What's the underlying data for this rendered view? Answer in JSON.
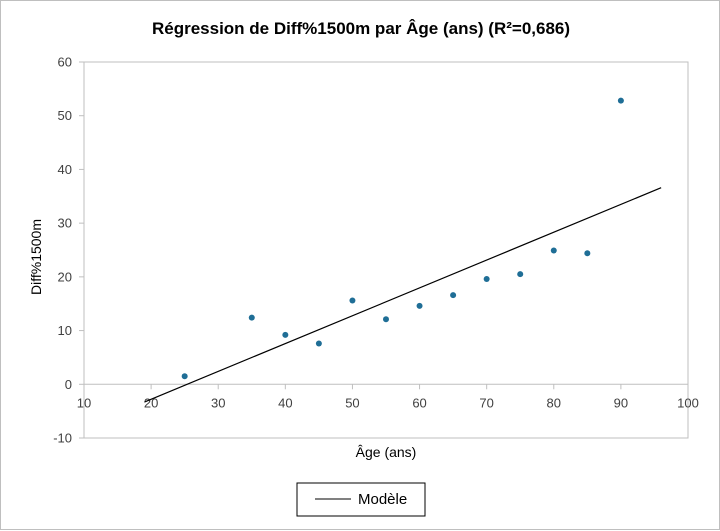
{
  "chart_data": {
    "type": "scatter",
    "title": "Régression de Diff%1500m par Âge (ans) (R²=0,686)",
    "xlabel": "Âge (ans)",
    "ylabel": "Diff%1500m",
    "xlim": [
      10,
      100
    ],
    "ylim": [
      -10,
      60
    ],
    "xticks": [
      10,
      20,
      30,
      40,
      50,
      60,
      70,
      80,
      90,
      100
    ],
    "yticks": [
      -10,
      0,
      10,
      20,
      30,
      40,
      50,
      60
    ],
    "grid": false,
    "legend_position": "bottom",
    "series": [
      {
        "type": "scatter",
        "color": "#1f6e96",
        "x": [
          25,
          35,
          40,
          45,
          50,
          55,
          60,
          65,
          70,
          75,
          80,
          85,
          90
        ],
        "y": [
          1.5,
          12.4,
          9.2,
          7.6,
          15.6,
          12.1,
          14.6,
          16.6,
          19.6,
          20.5,
          24.9,
          24.4,
          52.8
        ]
      },
      {
        "type": "line",
        "name": "Modèle",
        "color": "#000000",
        "x": [
          19,
          96
        ],
        "y": [
          -3.3,
          36.6
        ]
      }
    ]
  }
}
